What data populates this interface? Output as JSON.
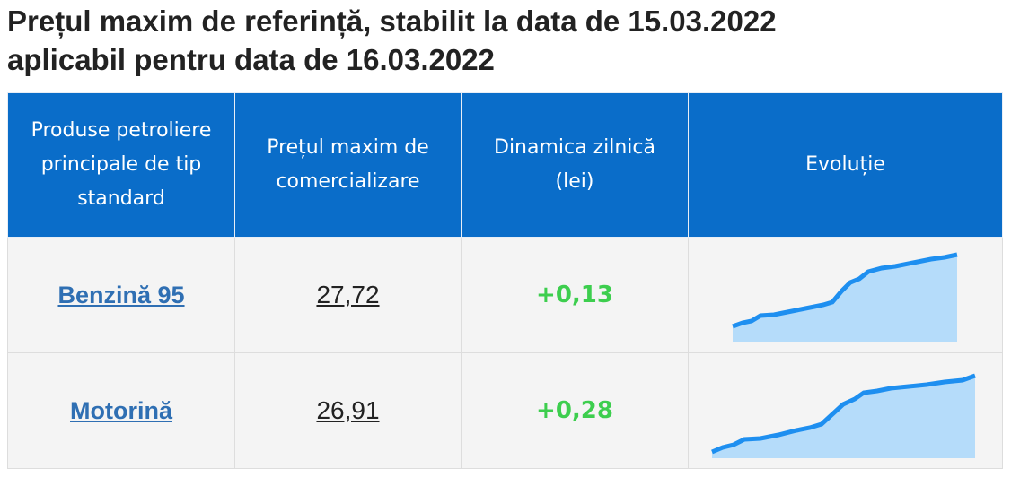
{
  "header": {
    "title_lines": [
      "Prețul maxim de referință, stabilit la data de 15.03.2022",
      "aplicabil pentru data de 16.03.2022"
    ]
  },
  "table": {
    "columns": [
      "Produse petroliere principale de tip standard",
      "Prețul maxim de comercializare",
      "Dinamica zilnică (lei)",
      "Evoluție"
    ],
    "rows": [
      [
        "Benzină 95",
        "27,72",
        "+0,13"
      ],
      [
        "Motorină",
        "26,91",
        "+0,28"
      ]
    ]
  }
}
